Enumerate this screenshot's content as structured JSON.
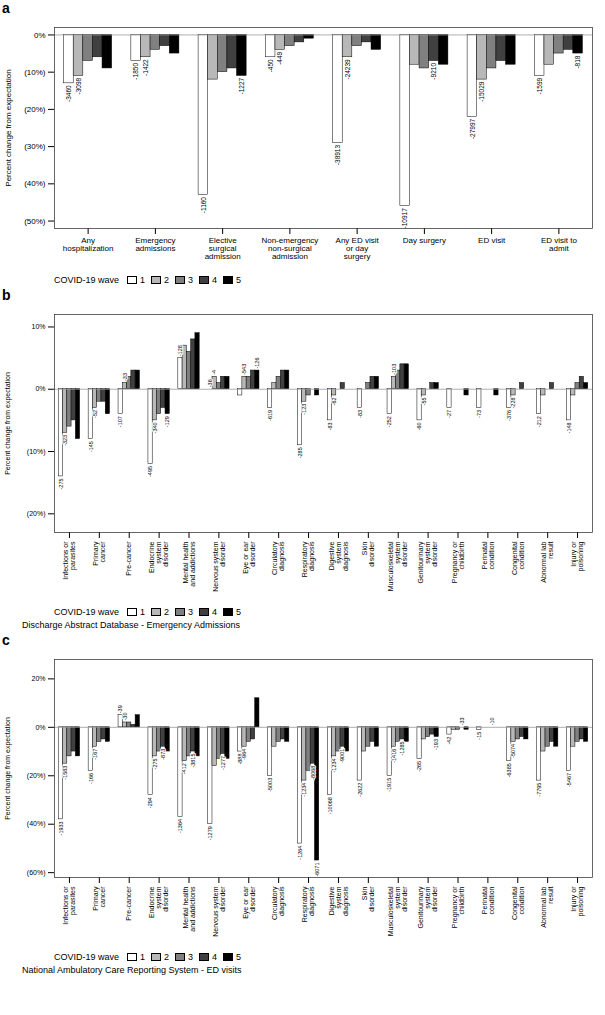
{
  "chart_data": [
    {
      "type": "bar",
      "title": "a",
      "ylabel": "Percent change from expectation",
      "categories": [
        "Any\nhospitalization",
        "Emergency\nadmissions",
        "Elective\nsurgical\nadmission",
        "Non-emergency\nnon-surgical\nadmission",
        "Any ED visit\nor day\nsurgery",
        "Day surgery",
        "ED visit",
        "ED visit to\nadmit"
      ],
      "series": [
        {
          "name": "1",
          "color": "#ffffff",
          "values": [
            -13,
            -7,
            -43,
            -6,
            -29,
            -46,
            -22,
            -11
          ]
        },
        {
          "name": "2",
          "color": "#b8b8b8",
          "values": [
            -11,
            -6,
            -12,
            -4,
            -6,
            -8,
            -12,
            -8
          ]
        },
        {
          "name": "3",
          "color": "#808080",
          "values": [
            -7,
            -4,
            -10,
            -3,
            -3,
            -9,
            -9,
            -5
          ]
        },
        {
          "name": "4",
          "color": "#404040",
          "values": [
            -6,
            -3,
            -9,
            -2,
            -2,
            -7,
            -7,
            -4
          ]
        },
        {
          "name": "5",
          "color": "#000000",
          "values": [
            -9,
            -5,
            -11,
            -1,
            -4,
            -8,
            -8,
            -5
          ]
        }
      ],
      "ylim": [
        -52,
        2
      ],
      "yticks": [
        {
          "value": 0,
          "label": "0%"
        },
        {
          "value": -10,
          "label": "(10%)"
        },
        {
          "value": -20,
          "label": "(20%)"
        },
        {
          "value": -30,
          "label": "(30%)"
        },
        {
          "value": -40,
          "label": "(40%)"
        },
        {
          "value": -50,
          "label": "(50%)"
        }
      ],
      "grid": false,
      "legend": "lower left",
      "legend_title": "COVID-19 wave",
      "annotations": [
        {
          "text": "-3460",
          "category": "Any\nhospitalization",
          "series": "1"
        },
        {
          "text": "-3098",
          "category": "Any\nhospitalization",
          "series": "2"
        },
        {
          "text": "-1850",
          "category": "Emergency\nadmissions",
          "series": "1"
        },
        {
          "text": "-1422",
          "category": "Emergency\nadmissions",
          "series": "2"
        },
        {
          "text": "-1160",
          "category": "Elective\nsurgical\nadmission",
          "series": "1"
        },
        {
          "text": "-1227",
          "category": "Elective\nsurgical\nadmission",
          "series": "5"
        },
        {
          "text": "-450",
          "category": "Non-emergency\nnon-surgical\nadmission",
          "series": "1"
        },
        {
          "text": "-449",
          "category": "Non-emergency\nnon-surgical\nadmission",
          "series": "2"
        },
        {
          "text": "-38913",
          "category": "Any ED visit\nor day\nsurgery",
          "series": "1"
        },
        {
          "text": "-24239",
          "category": "Any ED visit\nor day\nsurgery",
          "series": "2"
        },
        {
          "text": "-10917",
          "category": "Day surgery",
          "series": "1"
        },
        {
          "text": "-9210",
          "category": "Day surgery",
          "series": "4"
        },
        {
          "text": "-27997",
          "category": "ED visit",
          "series": "1"
        },
        {
          "text": "-15029",
          "category": "ED visit",
          "series": "2"
        },
        {
          "text": "-1599",
          "category": "ED visit to\nadmit",
          "series": "1"
        },
        {
          "text": "-818",
          "category": "ED visit to\nadmit",
          "series": "5"
        }
      ]
    },
    {
      "type": "bar",
      "title": "b",
      "subtitle": "Discharge Abstract Database - Emergency Admissions",
      "ylabel": "Percent change from expectation",
      "categories": [
        "Infections or\nparasites",
        "Primary\ncancer",
        "Pre-cancer",
        "Endocrine\nsystem\ndisorder",
        "Mental health\nand addictions",
        "Nervous system\ndisorder",
        "Eye or ear\ndisorder",
        "Circulatory\ndiagnosis",
        "Respiratory\ndiagnosis",
        "Digestive\nsystem\ndiagnosis",
        "Skin\ndisorder",
        "Musculoskeletal\nsystem\ndisorder",
        "Genitourinary\nsystem\ndisorder",
        "Pregnancy or\nchildbirth",
        "Perinatal\ncondition",
        "Congenital\ncondition",
        "Abnormal lab\nresult",
        "Injury or\npoisoning"
      ],
      "series": [
        {
          "name": "1",
          "color": "#ffffff",
          "values": [
            -14,
            -8,
            -4,
            -12,
            5,
            0,
            -1,
            -3,
            -9,
            -5,
            -3,
            -4,
            -5,
            -3,
            -3,
            -3,
            -4,
            -5
          ]
        },
        {
          "name": "2",
          "color": "#b8b8b8",
          "values": [
            -7,
            -3,
            1,
            -5,
            7,
            2,
            2,
            1,
            -2,
            -1,
            0,
            2,
            -1,
            0,
            0,
            -1,
            -1,
            -1
          ]
        },
        {
          "name": "3",
          "color": "#808080",
          "values": [
            -6,
            -2,
            2,
            -4,
            6,
            1,
            2,
            2,
            -1,
            0,
            1,
            3,
            0,
            0,
            0,
            0,
            0,
            1
          ]
        },
        {
          "name": "4",
          "color": "#404040",
          "values": [
            -5,
            -2,
            3,
            -3,
            8,
            2,
            3,
            3,
            0,
            1,
            2,
            4,
            1,
            0,
            0,
            1,
            1,
            2
          ]
        },
        {
          "name": "5",
          "color": "#000000",
          "values": [
            -8,
            -4,
            3,
            -4,
            9,
            2,
            3,
            3,
            -1,
            0,
            2,
            4,
            1,
            -1,
            -1,
            0,
            0,
            1
          ]
        }
      ],
      "ylim": [
        -23,
        12
      ],
      "yticks": [
        {
          "value": 10,
          "label": "10%"
        },
        {
          "value": 0,
          "label": "0%"
        },
        {
          "value": -10,
          "label": "(10%)"
        },
        {
          "value": -20,
          "label": "(20%)"
        }
      ],
      "grid": false,
      "legend": "lower left",
      "legend_title": "COVID-19 wave",
      "annotations": [
        {
          "text": "-275",
          "category": "Infections or\nparasites",
          "series": "1"
        },
        {
          "text": "-323",
          "category": "Infections or\nparasites",
          "series": "2"
        },
        {
          "text": "-145",
          "category": "Primary\ncancer",
          "series": "1"
        },
        {
          "text": "-52",
          "category": "Primary\ncancer",
          "series": "2"
        },
        {
          "text": "-107",
          "category": "Pre-cancer",
          "series": "1"
        },
        {
          "text": "-33",
          "category": "Pre-cancer",
          "series": "2"
        },
        {
          "text": "-495",
          "category": "Endocrine\nsystem\ndisorder",
          "series": "1"
        },
        {
          "text": "-340",
          "category": "Endocrine\nsystem\ndisorder",
          "series": "2"
        },
        {
          "text": "-129",
          "category": "Endocrine\nsystem\ndisorder",
          "series": "5"
        },
        {
          "text": "-128",
          "category": "Mental health\nand addictions",
          "series": "1"
        },
        {
          "text": "-36",
          "category": "Nervous system\ndisorder",
          "series": "1"
        },
        {
          "text": "-4",
          "category": "Nervous system\ndisorder",
          "series": "2"
        },
        {
          "text": "-543",
          "category": "Eye or ear\ndisorder",
          "series": "2"
        },
        {
          "text": "-126",
          "category": "Eye or ear\ndisorder",
          "series": "5"
        },
        {
          "text": "-619",
          "category": "Circulatory\ndiagnosis",
          "series": "1"
        },
        {
          "text": "-285",
          "category": "Respiratory\ndiagnosis",
          "series": "1"
        },
        {
          "text": "-123",
          "category": "Respiratory\ndiagnosis",
          "series": "2"
        },
        {
          "text": "-83",
          "category": "Digestive\nsystem\ndiagnosis",
          "series": "1"
        },
        {
          "text": "-62",
          "category": "Digestive\nsystem\ndiagnosis",
          "series": "2"
        },
        {
          "text": "-83",
          "category": "Skin\ndisorder",
          "series": "1"
        },
        {
          "text": "-252",
          "category": "Musculoskeletal\nsystem\ndisorder",
          "series": "1"
        },
        {
          "text": "-103",
          "category": "Musculoskeletal\nsystem\ndisorder",
          "series": "2"
        },
        {
          "text": "-60",
          "category": "Genitourinary\nsystem\ndisorder",
          "series": "1"
        },
        {
          "text": "-55",
          "category": "Genitourinary\nsystem\ndisorder",
          "series": "2"
        },
        {
          "text": "-27",
          "category": "Pregnancy or\nchildbirth",
          "series": "1"
        },
        {
          "text": "-73",
          "category": "Perinatal\ncondition",
          "series": "1"
        },
        {
          "text": "-376",
          "category": "Congenital\ncondition",
          "series": "1"
        },
        {
          "text": "-228",
          "category": "Congenital\ncondition",
          "series": "2"
        },
        {
          "text": "-212",
          "category": "Abnormal lab\nresult",
          "series": "1"
        },
        {
          "text": "-148",
          "category": "Injury or\npoisoning",
          "series": "1"
        }
      ]
    },
    {
      "type": "bar",
      "title": "c",
      "subtitle": "National Ambulatory Care Reporting System - ED visits",
      "ylabel": "Percent change from expectation",
      "categories": [
        "Infections or\nparasites",
        "Primary\ncancer",
        "Pre-cancer",
        "Endocrine\nsystem\ndisorder",
        "Mental health\nand addictions",
        "Nervous system\ndisorder",
        "Eye or ear\ndisorder",
        "Circulatory\ndiagnosis",
        "Respiratory\ndiagnosis",
        "Digestive\nsystem\ndiagnosis",
        "Skin\ndisorder",
        "Musculoskeletal\nsystem\ndisorder",
        "Genitourinary\nsystem\ndisorder",
        "Pregnancy or\nchildbirth",
        "Perinatal\ncondition",
        "Congenital\ncondition",
        "Abnormal lab\nresult",
        "Injury or\npoisoning"
      ],
      "series": [
        {
          "name": "1",
          "color": "#ffffff",
          "values": [
            -38,
            -18,
            5,
            -28,
            -37,
            -40,
            -10,
            -20,
            -48,
            -28,
            -22,
            -20,
            -13,
            -3,
            -1,
            -14,
            -22,
            -18
          ]
        },
        {
          "name": "2",
          "color": "#b8b8b8",
          "values": [
            -15,
            -8,
            2,
            -12,
            -14,
            -16,
            -8,
            -8,
            -22,
            -12,
            -10,
            -8,
            -5,
            -1,
            0,
            -6,
            -10,
            -8
          ]
        },
        {
          "name": "3",
          "color": "#808080",
          "values": [
            -12,
            -6,
            2,
            -10,
            -12,
            -13,
            -6,
            -6,
            -18,
            -10,
            -8,
            -6,
            -4,
            -1,
            0,
            -5,
            -8,
            -6
          ]
        },
        {
          "name": "4",
          "color": "#404040",
          "values": [
            -10,
            -5,
            1,
            -8,
            -10,
            -11,
            -5,
            -5,
            -15,
            -8,
            -6,
            -5,
            -3,
            0,
            0,
            -4,
            -6,
            -5
          ]
        },
        {
          "name": "5",
          "color": "#000000",
          "values": [
            -12,
            -6,
            5,
            -10,
            -12,
            -13,
            12,
            -6,
            -55,
            -10,
            -8,
            -6,
            -4,
            -1,
            0,
            -5,
            -8,
            -6
          ]
        }
      ],
      "ylim": [
        -62,
        28
      ],
      "yticks": [
        {
          "value": 20,
          "label": "20%"
        },
        {
          "value": 0,
          "label": "0%"
        },
        {
          "value": -20,
          "label": "(20%)"
        },
        {
          "value": -40,
          "label": "(40%)"
        },
        {
          "value": -60,
          "label": "(60%)"
        }
      ],
      "grid": false,
      "legend": "lower left",
      "legend_title": "COVID-19 wave",
      "annotations": [
        {
          "text": "-1933",
          "category": "Infections or\nparasites",
          "series": "1"
        },
        {
          "text": "-1583",
          "category": "Infections or\nparasites",
          "series": "2"
        },
        {
          "text": "-166",
          "category": "Primary\ncancer",
          "series": "1"
        },
        {
          "text": "-167",
          "category": "Primary\ncancer",
          "series": "2"
        },
        {
          "text": "-39",
          "category": "Pre-cancer",
          "series": "1"
        },
        {
          "text": "-30",
          "category": "Pre-cancer",
          "series": "2"
        },
        {
          "text": "-294",
          "category": "Endocrine\nsystem\ndisorder",
          "series": "1"
        },
        {
          "text": "-275",
          "category": "Endocrine\nsystem\ndisorder",
          "series": "2"
        },
        {
          "text": "-873",
          "category": "Endocrine\nsystem\ndisorder",
          "series": "4"
        },
        {
          "text": "-1364",
          "category": "Mental health\nand addictions",
          "series": "1"
        },
        {
          "text": "-412",
          "category": "Mental health\nand addictions",
          "series": "2"
        },
        {
          "text": "-3815",
          "category": "Mental health\nand addictions",
          "series": "4"
        },
        {
          "text": "-1279",
          "category": "Nervous system\ndisorder",
          "series": "1"
        },
        {
          "text": "-1277",
          "category": "Nervous system\ndisorder",
          "series": "4"
        },
        {
          "text": "-888",
          "category": "Eye or ear\ndisorder",
          "series": "1"
        },
        {
          "text": "-964",
          "category": "Eye or ear\ndisorder",
          "series": "2"
        },
        {
          "text": "-5003",
          "category": "Circulatory\ndiagnosis",
          "series": "1"
        },
        {
          "text": "-1264",
          "category": "Respiratory\ndiagnosis",
          "series": "1"
        },
        {
          "text": "-1234",
          "category": "Respiratory\ndiagnosis",
          "series": "2"
        },
        {
          "text": "-8068",
          "category": "Respiratory\ndiagnosis",
          "series": "4"
        },
        {
          "text": "-6071",
          "category": "Respiratory\ndiagnosis",
          "series": "5"
        },
        {
          "text": "-10068",
          "category": "Digestive\nsystem\ndiagnosis",
          "series": "1"
        },
        {
          "text": "-1234",
          "category": "Digestive\nsystem\ndiagnosis",
          "series": "2"
        },
        {
          "text": "-9001",
          "category": "Digestive\nsystem\ndiagnosis",
          "series": "4"
        },
        {
          "text": "-2622",
          "category": "Skin\ndisorder",
          "series": "1"
        },
        {
          "text": "-1915",
          "category": "Musculoskeletal\nsystem\ndisorder",
          "series": "1"
        },
        {
          "text": "-1416",
          "category": "Musculoskeletal\nsystem\ndisorder",
          "series": "2"
        },
        {
          "text": "-1285",
          "category": "Musculoskeletal\nsystem\ndisorder",
          "series": "4"
        },
        {
          "text": "-265",
          "category": "Genitourinary\nsystem\ndisorder",
          "series": "1"
        },
        {
          "text": "-193",
          "category": "Genitourinary\nsystem\ndisorder",
          "series": "5"
        },
        {
          "text": "-42",
          "category": "Pregnancy or\nchildbirth",
          "series": "1"
        },
        {
          "text": "-33",
          "category": "Pregnancy or\nchildbirth",
          "series": "4"
        },
        {
          "text": "-15",
          "category": "Perinatal\ncondition",
          "series": "1"
        },
        {
          "text": "-10",
          "category": "Perinatal\ncondition",
          "series": "4"
        },
        {
          "text": "-6385",
          "category": "Congenital\ncondition",
          "series": "1"
        },
        {
          "text": "-5074",
          "category": "Congenital\ncondition",
          "series": "2"
        },
        {
          "text": "-7795",
          "category": "Abnormal lab\nresult",
          "series": "1"
        },
        {
          "text": "-5467",
          "category": "Injury or\npoisoning",
          "series": "1"
        }
      ]
    }
  ]
}
